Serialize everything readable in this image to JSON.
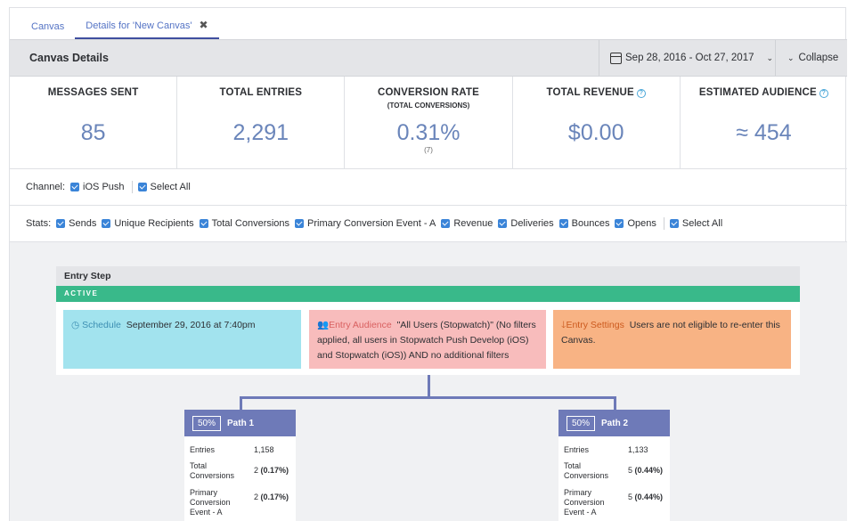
{
  "tabs": [
    {
      "label": "Canvas"
    },
    {
      "label": "Details for 'New Canvas'"
    }
  ],
  "header": {
    "title": "Canvas Details",
    "date_range": "Sep 28, 2016 - Oct 27, 2017",
    "collapse_label": "Collapse"
  },
  "stats": {
    "messages_sent": {
      "label": "MESSAGES SENT",
      "value": "85"
    },
    "total_entries": {
      "label": "TOTAL ENTRIES",
      "value": "2,291"
    },
    "conversion_rate": {
      "label": "CONVERSION RATE",
      "sub": "(TOTAL CONVERSIONS)",
      "value": "0.31%",
      "count": "(7)"
    },
    "total_revenue": {
      "label": "TOTAL REVENUE",
      "value": "$0.00"
    },
    "estimated_audience": {
      "label": "ESTIMATED AUDIENCE",
      "value": "≈ 454"
    }
  },
  "channel": {
    "label": "Channel:",
    "options": [
      "iOS Push",
      "Select All"
    ]
  },
  "stat_filters": {
    "label": "Stats:",
    "options": [
      "Sends",
      "Unique Recipients",
      "Total Conversions",
      "Primary Conversion Event - A",
      "Revenue",
      "Deliveries",
      "Bounces",
      "Opens",
      "Select All"
    ]
  },
  "entry_step": {
    "title": "Entry Step",
    "status": "ACTIVE",
    "schedule_title": "Schedule",
    "schedule_text": "September 29, 2016 at 7:40pm",
    "audience_title": "Entry Audience",
    "audience_text": "\"All Users (Stopwatch)\" (No filters applied, all users in Stopwatch Push Develop (iOS) and Stopwatch (iOS)) AND no additional filters",
    "settings_title": "Entry Settings",
    "settings_text": "Users are not eligible to re-enter this Canvas."
  },
  "paths": [
    {
      "percent": "50%",
      "name": "Path 1",
      "entries_label": "Entries",
      "entries": "1,158",
      "conv_label": "Total Conversions",
      "conv": "2",
      "conv_pct": "(0.17%)",
      "primary_label": "Primary Conversion Event - A",
      "primary": "2",
      "primary_pct": "(0.17%)"
    },
    {
      "percent": "50%",
      "name": "Path 2",
      "entries_label": "Entries",
      "entries": "1,133",
      "conv_label": "Total Conversions",
      "conv": "5",
      "conv_pct": "(0.44%)",
      "primary_label": "Primary Conversion Event - A",
      "primary": "5",
      "primary_pct": "(0.44%)"
    }
  ],
  "colors": {
    "accent": "#5574c5",
    "active_green": "#39b98a",
    "path_header": "#6e7ab8",
    "checkbox": "#3a84d8",
    "stat_value": "#6a85ba"
  }
}
